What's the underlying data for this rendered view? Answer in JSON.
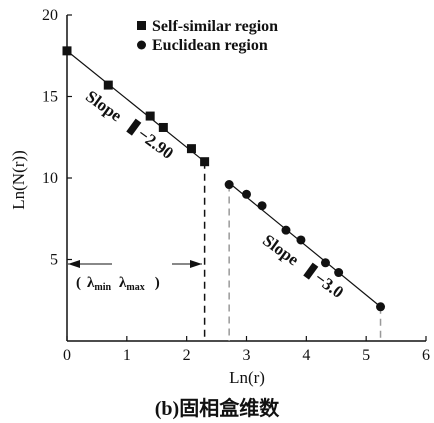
{
  "chart_data": {
    "type": "scatter",
    "xlabel": "Ln(r)",
    "ylabel": "Ln(N(r))",
    "xlim": [
      0,
      6
    ],
    "ylim": [
      0,
      20
    ],
    "x_ticks": [
      "0",
      "1",
      "2",
      "3",
      "4",
      "5",
      "6"
    ],
    "y_ticks": [
      "5",
      "10",
      "15",
      "20"
    ],
    "legend_position": "top-right",
    "series": [
      {
        "name": "Self-similar region",
        "marker": "square",
        "x": [
          0.0,
          0.69,
          1.39,
          1.61,
          2.08,
          2.3
        ],
        "y": [
          17.8,
          15.7,
          13.8,
          13.1,
          11.8,
          11.0
        ]
      },
      {
        "name": "Euclidean region",
        "marker": "circle",
        "x": [
          2.71,
          3.0,
          3.26,
          3.66,
          3.91,
          4.32,
          4.54,
          5.24
        ],
        "y": [
          9.6,
          9.0,
          8.3,
          6.8,
          6.2,
          4.8,
          4.2,
          2.1
        ]
      }
    ],
    "fit_lines": [
      {
        "x": [
          0.0,
          2.3
        ],
        "y": [
          17.8,
          11.0
        ]
      },
      {
        "x": [
          2.71,
          5.24
        ],
        "y": [
          9.7,
          2.1
        ]
      }
    ],
    "annotations": {
      "slope1": {
        "label": "Slope",
        "value": "−2.90"
      },
      "slope2": {
        "label": "Slope",
        "value": "−3.0"
      },
      "lambda_min": "λ",
      "lambda_min_sub": "min",
      "lambda_max": "λ",
      "lambda_max_sub": "max",
      "lambda_open": "(",
      "lambda_close": ")"
    },
    "caption": "(b)固相盒维数"
  },
  "colors": {
    "ink": "#111111",
    "guide": "#999999"
  }
}
